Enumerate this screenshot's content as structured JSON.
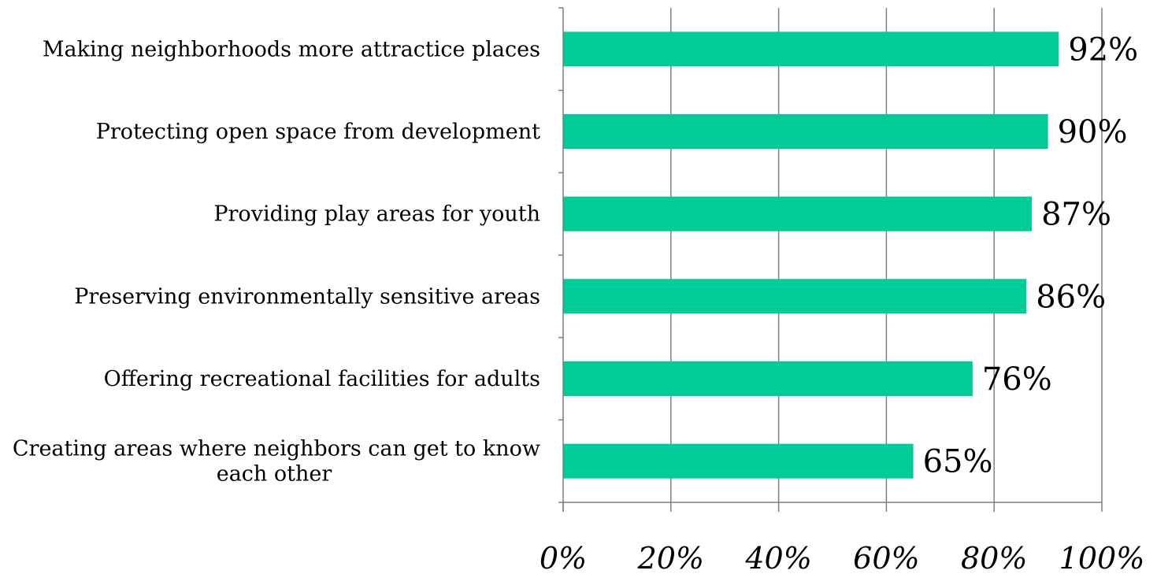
{
  "chart_data": {
    "type": "bar",
    "orientation": "horizontal",
    "title": "",
    "xlabel": "",
    "ylabel": "",
    "categories": [
      [
        "Making neighborhoods more attractice places"
      ],
      [
        "Protecting open space from development"
      ],
      [
        "Providing play areas for youth"
      ],
      [
        "Preserving environmentally sensitive areas"
      ],
      [
        "Offering recreational facilities for adults"
      ],
      [
        "Creating areas where neighbors can get to know",
        "each other"
      ]
    ],
    "values": [
      92,
      90,
      87,
      86,
      76,
      65
    ],
    "value_labels": [
      "92%",
      "90%",
      "87%",
      "86%",
      "76%",
      "65%"
    ],
    "xlim": [
      0,
      100
    ],
    "x_ticks": [
      0,
      20,
      40,
      60,
      80,
      100
    ],
    "x_tick_labels": [
      "0%",
      "20%",
      "40%",
      "60%",
      "80%",
      "100%"
    ],
    "grid": "vertical",
    "legend": "none",
    "bar_color": "#00CC99",
    "grid_color": "#7f7f7f"
  }
}
